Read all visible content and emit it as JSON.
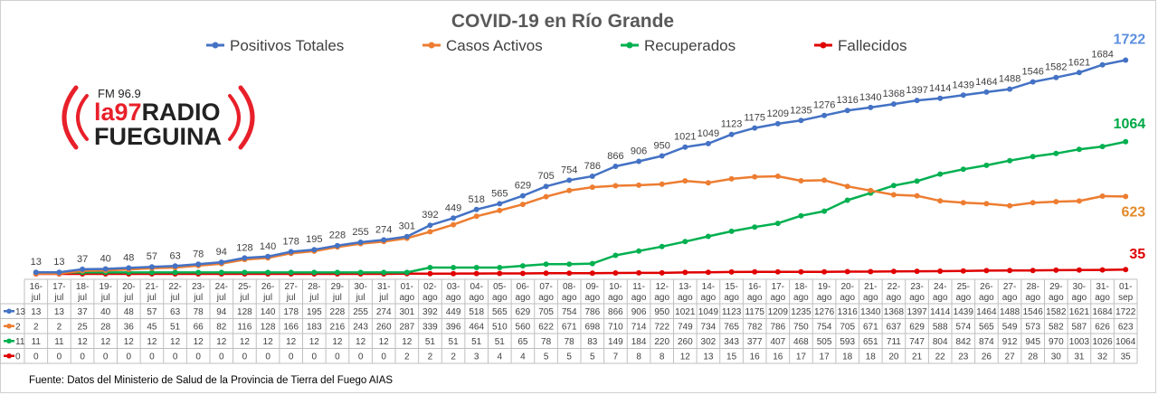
{
  "chart_data": {
    "type": "line",
    "title": "COVID-19 en Río Grande",
    "categories": [
      [
        "16-",
        "jul"
      ],
      [
        "17-",
        "jul"
      ],
      [
        "18-",
        "jul"
      ],
      [
        "19-",
        "jul"
      ],
      [
        "20-",
        "jul"
      ],
      [
        "21-",
        "jul"
      ],
      [
        "22-",
        "jul"
      ],
      [
        "23-",
        "jul"
      ],
      [
        "24-",
        "jul"
      ],
      [
        "25-",
        "jul"
      ],
      [
        "26-",
        "jul"
      ],
      [
        "27-",
        "jul"
      ],
      [
        "28-",
        "jul"
      ],
      [
        "29-",
        "jul"
      ],
      [
        "30-",
        "jul"
      ],
      [
        "31-",
        "jul"
      ],
      [
        "01-",
        "ago"
      ],
      [
        "02-",
        "ago"
      ],
      [
        "03-",
        "ago"
      ],
      [
        "04-",
        "ago"
      ],
      [
        "05-",
        "ago"
      ],
      [
        "06-",
        "ago"
      ],
      [
        "07-",
        "ago"
      ],
      [
        "08-",
        "ago"
      ],
      [
        "09-",
        "ago"
      ],
      [
        "10-",
        "ago"
      ],
      [
        "11-",
        "ago"
      ],
      [
        "12-",
        "ago"
      ],
      [
        "13-",
        "ago"
      ],
      [
        "14-",
        "ago"
      ],
      [
        "15-",
        "ago"
      ],
      [
        "16-",
        "ago"
      ],
      [
        "17-",
        "ago"
      ],
      [
        "18-",
        "ago"
      ],
      [
        "19-",
        "ago"
      ],
      [
        "20-",
        "ago"
      ],
      [
        "21-",
        "ago"
      ],
      [
        "22-",
        "ago"
      ],
      [
        "23-",
        "ago"
      ],
      [
        "24-",
        "ago"
      ],
      [
        "25-",
        "ago"
      ],
      [
        "26-",
        "ago"
      ],
      [
        "27-",
        "ago"
      ],
      [
        "28-",
        "ago"
      ],
      [
        "29-",
        "ago"
      ],
      [
        "30-",
        "ago"
      ],
      [
        "31-",
        "ago"
      ],
      [
        "01-",
        "sep"
      ]
    ],
    "series": [
      {
        "name": "Positivos Totales",
        "color": "#4472c4",
        "values": [
          13,
          13,
          37,
          40,
          48,
          57,
          63,
          78,
          94,
          128,
          140,
          178,
          195,
          228,
          255,
          274,
          301,
          392,
          449,
          518,
          565,
          629,
          705,
          754,
          786,
          866,
          906,
          950,
          1021,
          1049,
          1123,
          1175,
          1209,
          1235,
          1276,
          1316,
          1340,
          1368,
          1397,
          1414,
          1439,
          1464,
          1488,
          1546,
          1582,
          1621,
          1684,
          1722
        ],
        "table_label": "13",
        "end_label": "1722",
        "end_color": "#5b8fe0",
        "show_point_labels": true
      },
      {
        "name": "Casos Activos",
        "color": "#ed7d31",
        "values": [
          2,
          2,
          25,
          28,
          36,
          45,
          51,
          66,
          82,
          116,
          128,
          166,
          183,
          216,
          243,
          260,
          287,
          339,
          396,
          464,
          510,
          560,
          622,
          671,
          698,
          710,
          714,
          722,
          749,
          734,
          765,
          782,
          786,
          750,
          754,
          705,
          671,
          637,
          629,
          588,
          574,
          565,
          549,
          573,
          582,
          587,
          626,
          623
        ],
        "table_label": "2",
        "end_label": "623",
        "end_color": "#e08a2a",
        "show_point_labels": false
      },
      {
        "name": "Recuperados",
        "color": "#00b050",
        "values": [
          11,
          11,
          12,
          12,
          12,
          12,
          12,
          12,
          12,
          12,
          12,
          12,
          12,
          12,
          12,
          12,
          12,
          51,
          51,
          51,
          51,
          65,
          78,
          78,
          83,
          149,
          184,
          220,
          260,
          302,
          343,
          377,
          407,
          468,
          505,
          593,
          651,
          711,
          747,
          804,
          842,
          874,
          912,
          945,
          970,
          1003,
          1026,
          1064
        ],
        "table_label": "11",
        "end_label": "1064",
        "end_color": "#00a846",
        "show_point_labels": false
      },
      {
        "name": "Fallecidos",
        "color": "#e00000",
        "values": [
          0,
          0,
          0,
          0,
          0,
          0,
          0,
          0,
          0,
          0,
          0,
          0,
          0,
          0,
          0,
          0,
          2,
          2,
          2,
          3,
          4,
          4,
          5,
          5,
          5,
          7,
          8,
          8,
          12,
          13,
          15,
          16,
          16,
          17,
          17,
          18,
          18,
          20,
          21,
          22,
          23,
          26,
          27,
          28,
          30,
          31,
          32,
          35
        ],
        "table_label": "0",
        "end_label": "35",
        "end_color": "#e00000",
        "show_point_labels": false
      }
    ],
    "ylim": [
      0,
      1900
    ],
    "legend_position": "top",
    "grid": false
  },
  "logo": {
    "frequency": "FM 96.9",
    "brand_prefix": "la97",
    "brand_word1": "RADIO",
    "brand_word2": "FUEGUINA"
  },
  "source": "Fuente: Datos del Ministerio de Salud de la Provincia de Tierra del Fuego AIAS"
}
